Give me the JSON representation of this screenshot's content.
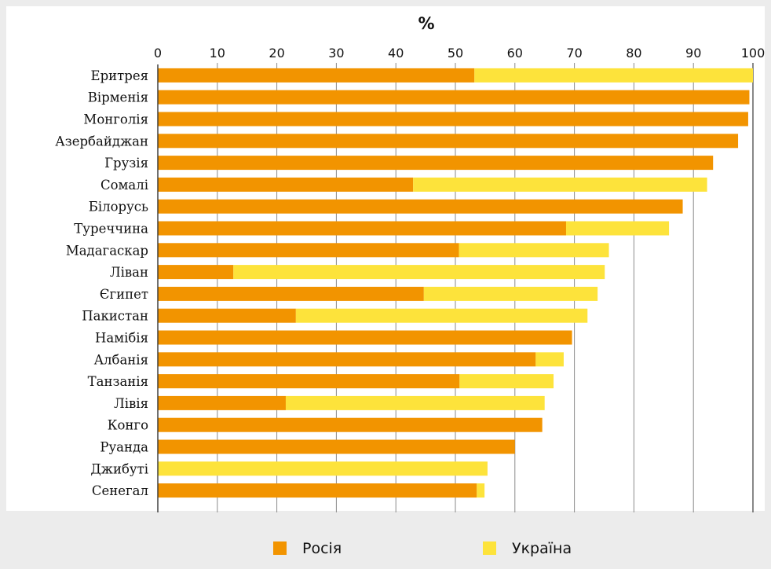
{
  "chart_data": {
    "type": "bar",
    "orientation": "horizontal",
    "stacked": true,
    "title": "",
    "unit_label": "%",
    "xlim": [
      0,
      100
    ],
    "x_ticks": [
      0,
      10,
      20,
      30,
      40,
      50,
      60,
      70,
      80,
      90,
      100
    ],
    "grid": true,
    "legend_position": "bottom",
    "categories": [
      "Еритрея",
      "Вірменія",
      "Монголія",
      "Азербайджан",
      "Грузія",
      "Сомалі",
      "Білорусь",
      "Туреччина",
      "Мадагаскар",
      "Ліван",
      "Єгипет",
      "Пакистан",
      "Намібія",
      "Албанія",
      "Танзанія",
      "Лівія",
      "Конго",
      "Руанда",
      "Джибуті",
      "Сенегал"
    ],
    "series": [
      {
        "name": "Росія",
        "color": "#f29400",
        "values": [
          53.2,
          99.4,
          99.2,
          97.5,
          93.3,
          42.9,
          88.2,
          68.6,
          50.6,
          12.7,
          44.7,
          23.2,
          69.6,
          63.5,
          50.7,
          21.5,
          64.6,
          60.0,
          0.0,
          53.6
        ]
      },
      {
        "name": "Україна",
        "color": "#fde33b",
        "values": [
          46.8,
          0.0,
          0.0,
          0.0,
          0.0,
          49.4,
          0.0,
          17.3,
          25.2,
          62.4,
          29.2,
          49.0,
          0.0,
          4.7,
          15.8,
          43.5,
          0.0,
          0.0,
          55.4,
          1.3
        ]
      }
    ]
  }
}
